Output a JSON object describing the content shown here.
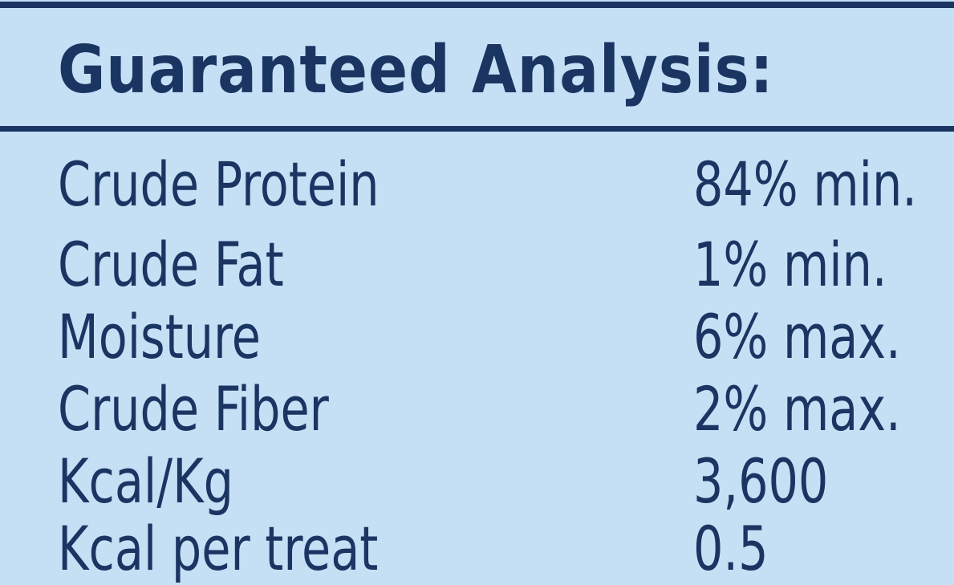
{
  "panel": {
    "title": "Guaranteed Analysis:"
  },
  "rows": [
    {
      "label": "Crude Protein",
      "value": "84% min."
    },
    {
      "label": "Crude Fat",
      "value": "1% min."
    },
    {
      "label": "Moisture",
      "value": "6% max."
    },
    {
      "label": "Crude Fiber",
      "value": "2% max."
    },
    {
      "label": "Kcal/Kg",
      "value": "3,600"
    },
    {
      "label": "Kcal per treat",
      "value": "0.5"
    }
  ],
  "colors": {
    "background": "#c5e0f5",
    "text": "#1b3563",
    "rule": "#1b3563"
  }
}
